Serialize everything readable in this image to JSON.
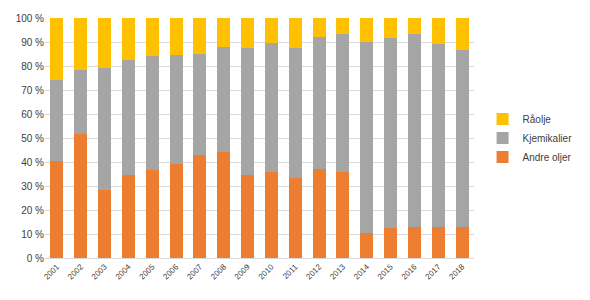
{
  "chart_data": {
    "type": "bar",
    "stacked": true,
    "grid": true,
    "legend": "right",
    "categories": [
      "2001",
      "2002",
      "2003",
      "2004",
      "2005",
      "2006",
      "2007",
      "2008",
      "2009",
      "2010",
      "2011",
      "2012",
      "2013",
      "2014",
      "2015",
      "2016",
      "2017",
      "2018"
    ],
    "series": [
      {
        "name": "Andre oljer",
        "color": "#ed7d31",
        "values": [
          40.5,
          51.5,
          28.5,
          34.5,
          36.5,
          39,
          43,
          44,
          34.5,
          36,
          33.5,
          37,
          36,
          10.5,
          12.5,
          13,
          13,
          13
        ]
      },
      {
        "name": "Kjemikalier",
        "color": "#a5a5a5",
        "values": [
          33.5,
          27,
          50.5,
          48,
          47.5,
          45.5,
          42,
          44,
          53,
          53.5,
          54,
          55,
          57.5,
          79.5,
          79,
          80.5,
          76,
          73.5
        ]
      },
      {
        "name": "Råolje",
        "color": "#ffc000",
        "values": [
          26,
          21.5,
          21,
          17.5,
          16,
          15.5,
          15,
          12,
          12.5,
          10.5,
          12.5,
          8,
          6.5,
          10,
          8.5,
          6.5,
          11,
          13.5
        ]
      }
    ],
    "ylim": [
      0,
      100
    ],
    "yticks": [
      {
        "value": 0,
        "label": "0 %"
      },
      {
        "value": 10,
        "label": "10 %"
      },
      {
        "value": 20,
        "label": "20 %"
      },
      {
        "value": 30,
        "label": "30 %"
      },
      {
        "value": 40,
        "label": "40 %"
      },
      {
        "value": 50,
        "label": "50 %"
      },
      {
        "value": 60,
        "label": "60 %"
      },
      {
        "value": 70,
        "label": "70 %"
      },
      {
        "value": 80,
        "label": "80 %"
      },
      {
        "value": 90,
        "label": "90 %"
      },
      {
        "value": 100,
        "label": "100 %"
      }
    ]
  }
}
